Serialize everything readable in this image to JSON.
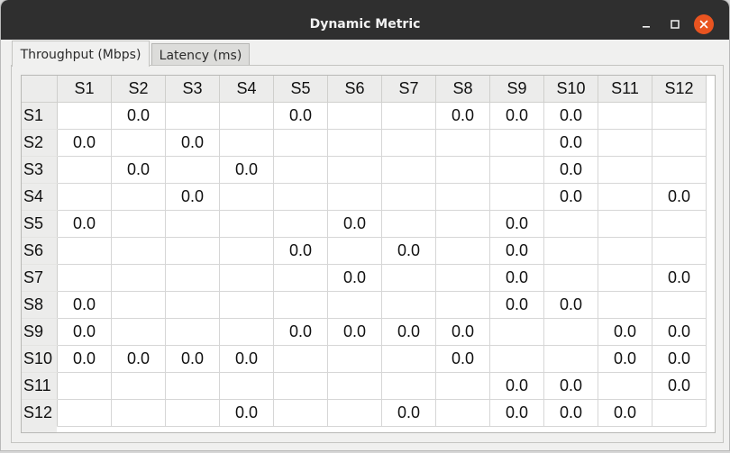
{
  "window": {
    "title": "Dynamic Metric",
    "close_color": "#e95420",
    "titlebar_color": "#2f2f2f"
  },
  "controls": {
    "minimize_icon": "minimize-icon",
    "maximize_icon": "maximize-icon",
    "close_icon": "close-icon"
  },
  "tabs": [
    {
      "label": "Throughput (Mbps)",
      "active": true
    },
    {
      "label": "Latency (ms)",
      "active": false
    }
  ],
  "table": {
    "columns": [
      "S1",
      "S2",
      "S3",
      "S4",
      "S5",
      "S6",
      "S7",
      "S8",
      "S9",
      "S10",
      "S11",
      "S12"
    ],
    "rows": [
      {
        "label": "S1",
        "cells": [
          "",
          "0.0",
          "",
          "",
          "0.0",
          "",
          "",
          "0.0",
          "0.0",
          "0.0",
          "",
          ""
        ]
      },
      {
        "label": "S2",
        "cells": [
          "0.0",
          "",
          "0.0",
          "",
          "",
          "",
          "",
          "",
          "",
          "0.0",
          "",
          ""
        ]
      },
      {
        "label": "S3",
        "cells": [
          "",
          "0.0",
          "",
          "0.0",
          "",
          "",
          "",
          "",
          "",
          "0.0",
          "",
          ""
        ]
      },
      {
        "label": "S4",
        "cells": [
          "",
          "",
          "0.0",
          "",
          "",
          "",
          "",
          "",
          "",
          "0.0",
          "",
          "0.0"
        ]
      },
      {
        "label": "S5",
        "cells": [
          "0.0",
          "",
          "",
          "",
          "",
          "0.0",
          "",
          "",
          "0.0",
          "",
          "",
          ""
        ]
      },
      {
        "label": "S6",
        "cells": [
          "",
          "",
          "",
          "",
          "0.0",
          "",
          "0.0",
          "",
          "0.0",
          "",
          "",
          ""
        ]
      },
      {
        "label": "S7",
        "cells": [
          "",
          "",
          "",
          "",
          "",
          "0.0",
          "",
          "",
          "0.0",
          "",
          "",
          "0.0"
        ]
      },
      {
        "label": "S8",
        "cells": [
          "0.0",
          "",
          "",
          "",
          "",
          "",
          "",
          "",
          "0.0",
          "0.0",
          "",
          ""
        ]
      },
      {
        "label": "S9",
        "cells": [
          "0.0",
          "",
          "",
          "",
          "0.0",
          "0.0",
          "0.0",
          "0.0",
          "",
          "",
          "0.0",
          "0.0"
        ]
      },
      {
        "label": "S10",
        "cells": [
          "0.0",
          "0.0",
          "0.0",
          "0.0",
          "",
          "",
          "",
          "0.0",
          "",
          "",
          "0.0",
          "0.0"
        ]
      },
      {
        "label": "S11",
        "cells": [
          "",
          "",
          "",
          "",
          "",
          "",
          "",
          "",
          "0.0",
          "0.0",
          "",
          "0.0"
        ]
      },
      {
        "label": "S12",
        "cells": [
          "",
          "",
          "",
          "0.0",
          "",
          "",
          "0.0",
          "",
          "0.0",
          "0.0",
          "0.0",
          ""
        ]
      }
    ]
  }
}
